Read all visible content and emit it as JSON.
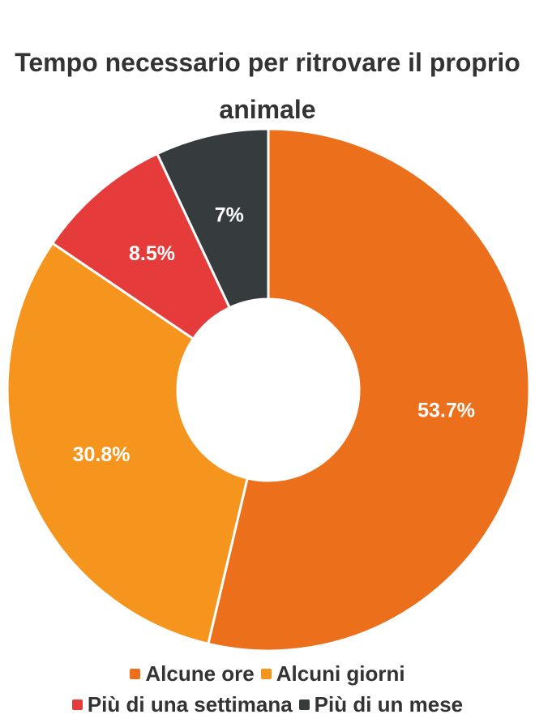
{
  "chart_data": {
    "type": "pie",
    "title": "Tempo necessario per ritrovare il proprio animale",
    "donut": true,
    "legend_position": "bottom",
    "series": [
      {
        "name": "Alcune ore",
        "value": 53.7,
        "label": "53.7%",
        "color": "#ec6f1b"
      },
      {
        "name": "Alcuni giorni",
        "value": 30.8,
        "label": "30.8%",
        "color": "#f5951d"
      },
      {
        "name": "Più di una settimana",
        "value": 8.5,
        "label": "8.5%",
        "color": "#e63b3b"
      },
      {
        "name": "Più di un mese",
        "value": 7,
        "label": "7%",
        "color": "#363b3e"
      }
    ]
  }
}
